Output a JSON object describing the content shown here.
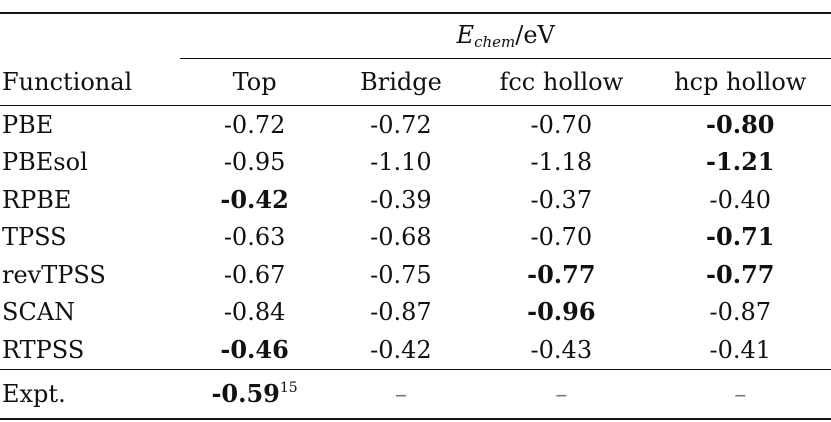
{
  "table": {
    "super_header": {
      "symbol": "E",
      "subscript": "chem",
      "unit": "/eV"
    },
    "columns": [
      "Functional",
      "Top",
      "Bridge",
      "fcc hollow",
      "hcp hollow"
    ],
    "rows": [
      {
        "label": "PBE",
        "values": [
          "-0.72",
          "-0.72",
          "-0.70",
          "-0.80"
        ],
        "bold": [
          false,
          false,
          false,
          true
        ]
      },
      {
        "label": "PBEsol",
        "values": [
          "-0.95",
          "-1.10",
          "-1.18",
          "-1.21"
        ],
        "bold": [
          false,
          false,
          false,
          true
        ]
      },
      {
        "label": "RPBE",
        "values": [
          "-0.42",
          "-0.39",
          "-0.37",
          "-0.40"
        ],
        "bold": [
          true,
          false,
          false,
          false
        ]
      },
      {
        "label": "TPSS",
        "values": [
          "-0.63",
          "-0.68",
          "-0.70",
          "-0.71"
        ],
        "bold": [
          false,
          false,
          false,
          true
        ]
      },
      {
        "label": "revTPSS",
        "values": [
          "-0.67",
          "-0.75",
          "-0.77",
          "-0.77"
        ],
        "bold": [
          false,
          false,
          true,
          true
        ]
      },
      {
        "label": "SCAN",
        "values": [
          "-0.84",
          "-0.87",
          "-0.96",
          "-0.87"
        ],
        "bold": [
          false,
          false,
          true,
          false
        ]
      },
      {
        "label": "RTPSS",
        "values": [
          "-0.46",
          "-0.42",
          "-0.43",
          "-0.41"
        ],
        "bold": [
          true,
          false,
          false,
          false
        ]
      }
    ],
    "expt": {
      "label": "Expt.",
      "top_value": "-0.59",
      "top_ref": "15",
      "dashes": [
        "–",
        "–",
        "–"
      ]
    }
  }
}
